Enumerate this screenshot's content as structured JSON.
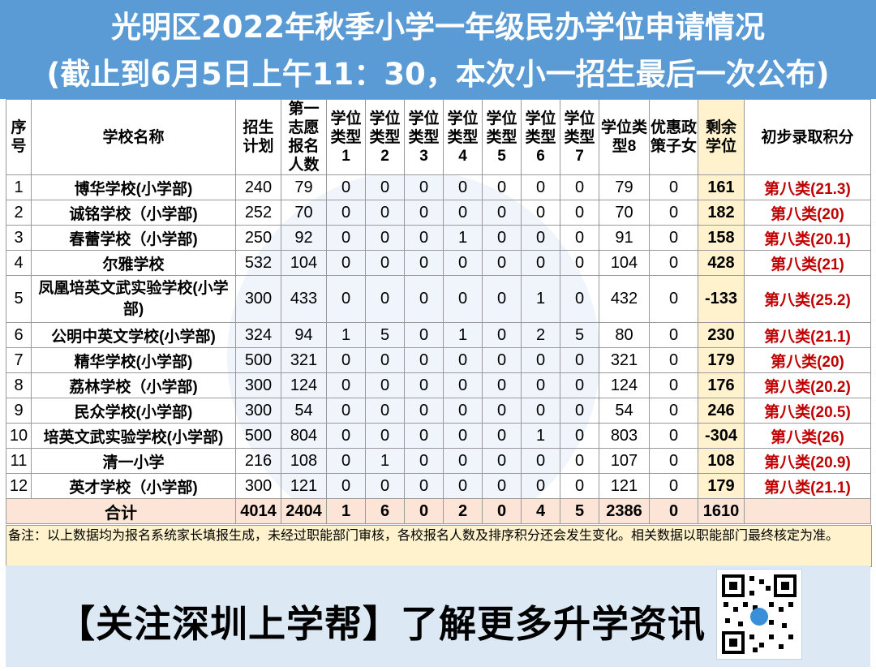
{
  "title": {
    "line1": "光明区2022年秋季小学一年级民办学位申请情况",
    "line2": "(截止到6月5日上午11：30，本次小一招生最后一次公布)"
  },
  "headers": [
    "序号",
    "学校名称",
    "招生计划",
    "第一志愿报名人数",
    "学位类型1",
    "学位类型2",
    "学位类型3",
    "学位类型4",
    "学位类型5",
    "学位类型6",
    "学位类型7",
    "学位类型8",
    "优惠政策子女",
    "剩余学位",
    "初步录取积分"
  ],
  "rows": [
    {
      "no": "1",
      "name": "博华学校(小学部)",
      "plan": "240",
      "first": "79",
      "t1": "0",
      "t2": "0",
      "t3": "0",
      "t4": "0",
      "t5": "0",
      "t6": "0",
      "t7": "0",
      "t8": "79",
      "pref": "0",
      "remain": "161",
      "score": "第八类(21.3)"
    },
    {
      "no": "2",
      "name": "诚铭学校（小学部)",
      "plan": "252",
      "first": "70",
      "t1": "0",
      "t2": "0",
      "t3": "0",
      "t4": "0",
      "t5": "0",
      "t6": "0",
      "t7": "0",
      "t8": "70",
      "pref": "0",
      "remain": "182",
      "score": "第八类(20)"
    },
    {
      "no": "3",
      "name": "春蕾学校（小学部)",
      "plan": "250",
      "first": "92",
      "t1": "0",
      "t2": "0",
      "t3": "0",
      "t4": "1",
      "t5": "0",
      "t6": "0",
      "t7": "0",
      "t8": "91",
      "pref": "0",
      "remain": "158",
      "score": "第八类(20.1)"
    },
    {
      "no": "4",
      "name": "尔雅学校",
      "plan": "532",
      "first": "104",
      "t1": "0",
      "t2": "0",
      "t3": "0",
      "t4": "0",
      "t5": "0",
      "t6": "0",
      "t7": "0",
      "t8": "104",
      "pref": "0",
      "remain": "428",
      "score": "第八类(21)"
    },
    {
      "no": "5",
      "name": "凤凰培英文武实验学校(小学部)",
      "plan": "300",
      "first": "433",
      "t1": "0",
      "t2": "0",
      "t3": "0",
      "t4": "0",
      "t5": "0",
      "t6": "1",
      "t7": "0",
      "t8": "432",
      "pref": "0",
      "remain": "-133",
      "score": "第八类(25.2)"
    },
    {
      "no": "6",
      "name": "公明中英文学校(小学部)",
      "plan": "324",
      "first": "94",
      "t1": "1",
      "t2": "5",
      "t3": "0",
      "t4": "1",
      "t5": "0",
      "t6": "2",
      "t7": "5",
      "t8": "80",
      "pref": "0",
      "remain": "230",
      "score": "第八类(21.1)"
    },
    {
      "no": "7",
      "name": "精华学校(小学部)",
      "plan": "500",
      "first": "321",
      "t1": "0",
      "t2": "0",
      "t3": "0",
      "t4": "0",
      "t5": "0",
      "t6": "0",
      "t7": "0",
      "t8": "321",
      "pref": "0",
      "remain": "179",
      "score": "第八类(20)"
    },
    {
      "no": "8",
      "name": "荔林学校（小学部)",
      "plan": "300",
      "first": "124",
      "t1": "0",
      "t2": "0",
      "t3": "0",
      "t4": "0",
      "t5": "0",
      "t6": "0",
      "t7": "0",
      "t8": "124",
      "pref": "0",
      "remain": "176",
      "score": "第八类(20.2)"
    },
    {
      "no": "9",
      "name": "民众学校(小学部)",
      "plan": "300",
      "first": "54",
      "t1": "0",
      "t2": "0",
      "t3": "0",
      "t4": "0",
      "t5": "0",
      "t6": "0",
      "t7": "0",
      "t8": "54",
      "pref": "0",
      "remain": "246",
      "score": "第八类(20.5)"
    },
    {
      "no": "10",
      "name": "培英文武实验学校(小学部)",
      "plan": "500",
      "first": "804",
      "t1": "0",
      "t2": "0",
      "t3": "0",
      "t4": "0",
      "t5": "0",
      "t6": "1",
      "t7": "0",
      "t8": "803",
      "pref": "0",
      "remain": "-304",
      "score": "第八类(26)"
    },
    {
      "no": "11",
      "name": "清一小学",
      "plan": "216",
      "first": "108",
      "t1": "0",
      "t2": "1",
      "t3": "0",
      "t4": "0",
      "t5": "0",
      "t6": "0",
      "t7": "0",
      "t8": "107",
      "pref": "0",
      "remain": "108",
      "score": "第八类(20.9)"
    },
    {
      "no": "12",
      "name": "英才学校（小学部)",
      "plan": "300",
      "first": "121",
      "t1": "0",
      "t2": "0",
      "t3": "0",
      "t4": "0",
      "t5": "0",
      "t6": "0",
      "t7": "0",
      "t8": "121",
      "pref": "0",
      "remain": "179",
      "score": "第八类(21.1)"
    }
  ],
  "total": {
    "label": "合计",
    "plan": "4014",
    "first": "2404",
    "t1": "1",
    "t2": "6",
    "t3": "0",
    "t4": "2",
    "t5": "0",
    "t6": "4",
    "t7": "5",
    "t8": "2386",
    "pref": "0",
    "remain": "1610",
    "score": ""
  },
  "note": "备注：以上数据均为报名系统家长填报生成，未经过职能部门审核，各校报名人数及排序积分还会发生变化。相关数据以职能部门最终核定为准。",
  "footer": {
    "slogan": "【关注深圳上学帮】了解更多升学资讯"
  },
  "colors": {
    "title_bg": "#5b9bd5",
    "remain_bg": "#fff2cc",
    "total_bg": "#fce4d6",
    "score_text": "#c00000",
    "footer_bg": "#dce9f5"
  }
}
